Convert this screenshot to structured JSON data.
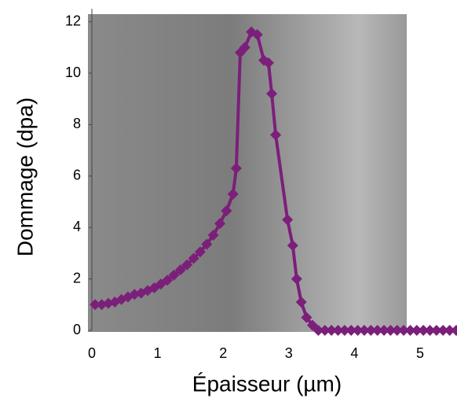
{
  "chart_data": {
    "type": "line",
    "xlabel": "Épaisseur (µm)",
    "ylabel": "Dommage (dpa)",
    "xlim": [
      0,
      5.6
    ],
    "ylim": [
      0,
      12.5
    ],
    "xticks": [
      0,
      1,
      2,
      3,
      4,
      5
    ],
    "yticks": [
      0,
      2,
      4,
      6,
      8,
      10,
      12
    ],
    "x": [
      0.05,
      0.15,
      0.25,
      0.35,
      0.45,
      0.55,
      0.65,
      0.75,
      0.85,
      0.95,
      1.05,
      1.15,
      1.25,
      1.35,
      1.45,
      1.55,
      1.65,
      1.75,
      1.85,
      1.95,
      2.05,
      2.15,
      2.2,
      2.26,
      2.33,
      2.43,
      2.52,
      2.62,
      2.69,
      2.74,
      2.8,
      2.98,
      3.06,
      3.12,
      3.19,
      3.27,
      3.36,
      3.45,
      3.55,
      3.65,
      3.75,
      3.85,
      3.95,
      4.05,
      4.15,
      4.25,
      4.35,
      4.45,
      4.55,
      4.65,
      4.75,
      4.85,
      4.95,
      5.05,
      5.15,
      5.25,
      5.35,
      5.45,
      5.55
    ],
    "series": [
      {
        "name": "Dommage",
        "color": "#7b1f7a",
        "values": [
          1.0,
          1.0,
          1.05,
          1.1,
          1.2,
          1.3,
          1.4,
          1.45,
          1.55,
          1.65,
          1.8,
          1.95,
          2.15,
          2.35,
          2.55,
          2.8,
          3.05,
          3.35,
          3.7,
          4.15,
          4.65,
          5.3,
          6.3,
          10.8,
          11.0,
          11.6,
          11.5,
          10.5,
          10.4,
          9.2,
          7.6,
          4.3,
          3.3,
          2.0,
          1.1,
          0.5,
          0.2,
          0,
          0,
          0,
          0,
          0,
          0,
          0,
          0,
          0,
          0,
          0,
          0,
          0,
          0,
          0,
          0,
          0,
          0,
          0,
          0,
          0,
          0
        ]
      }
    ]
  }
}
